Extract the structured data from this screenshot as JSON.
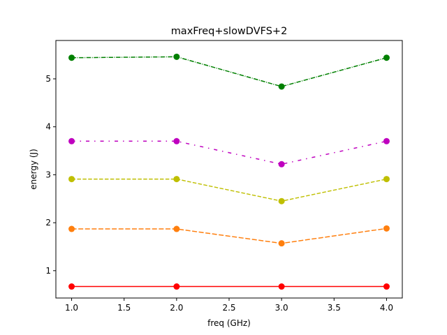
{
  "chart_data": {
    "type": "line",
    "title": "maxFreq+slowDVFS+2",
    "xlabel": "freq (GHz)",
    "ylabel": "energy (J)",
    "xlim": [
      0.85,
      4.15
    ],
    "ylim": [
      0.43,
      5.8
    ],
    "xticks": [
      1.0,
      1.5,
      2.0,
      2.5,
      3.0,
      3.5,
      4.0
    ],
    "xtick_labels": [
      "1.0",
      "1.5",
      "2.0",
      "2.5",
      "3.0",
      "3.5",
      "4.0"
    ],
    "yticks": [
      1,
      2,
      3,
      4,
      5
    ],
    "ytick_labels": [
      "1",
      "2",
      "3",
      "4",
      "5"
    ],
    "grid": false,
    "x": [
      1.0,
      2.0,
      3.0,
      4.0
    ],
    "series": [
      {
        "values": [
          0.67,
          0.67,
          0.67,
          0.67
        ],
        "color": "#ff0000",
        "linestyle": "solid",
        "marker": "circle"
      },
      {
        "values": [
          1.87,
          1.87,
          1.57,
          1.88
        ],
        "color": "#ff7f0e",
        "linestyle": "longdash",
        "marker": "circle"
      },
      {
        "values": [
          2.91,
          2.91,
          2.45,
          2.91
        ],
        "color": "#bfbf00",
        "linestyle": "dashed",
        "marker": "circle"
      },
      {
        "values": [
          3.7,
          3.7,
          3.22,
          3.7
        ],
        "color": "#bf00bf",
        "linestyle": "dashdot-sparse",
        "marker": "circle"
      },
      {
        "values": [
          5.44,
          5.46,
          4.84,
          5.44
        ],
        "color": "#008000",
        "linestyle": "dashdot",
        "marker": "circle"
      }
    ]
  }
}
